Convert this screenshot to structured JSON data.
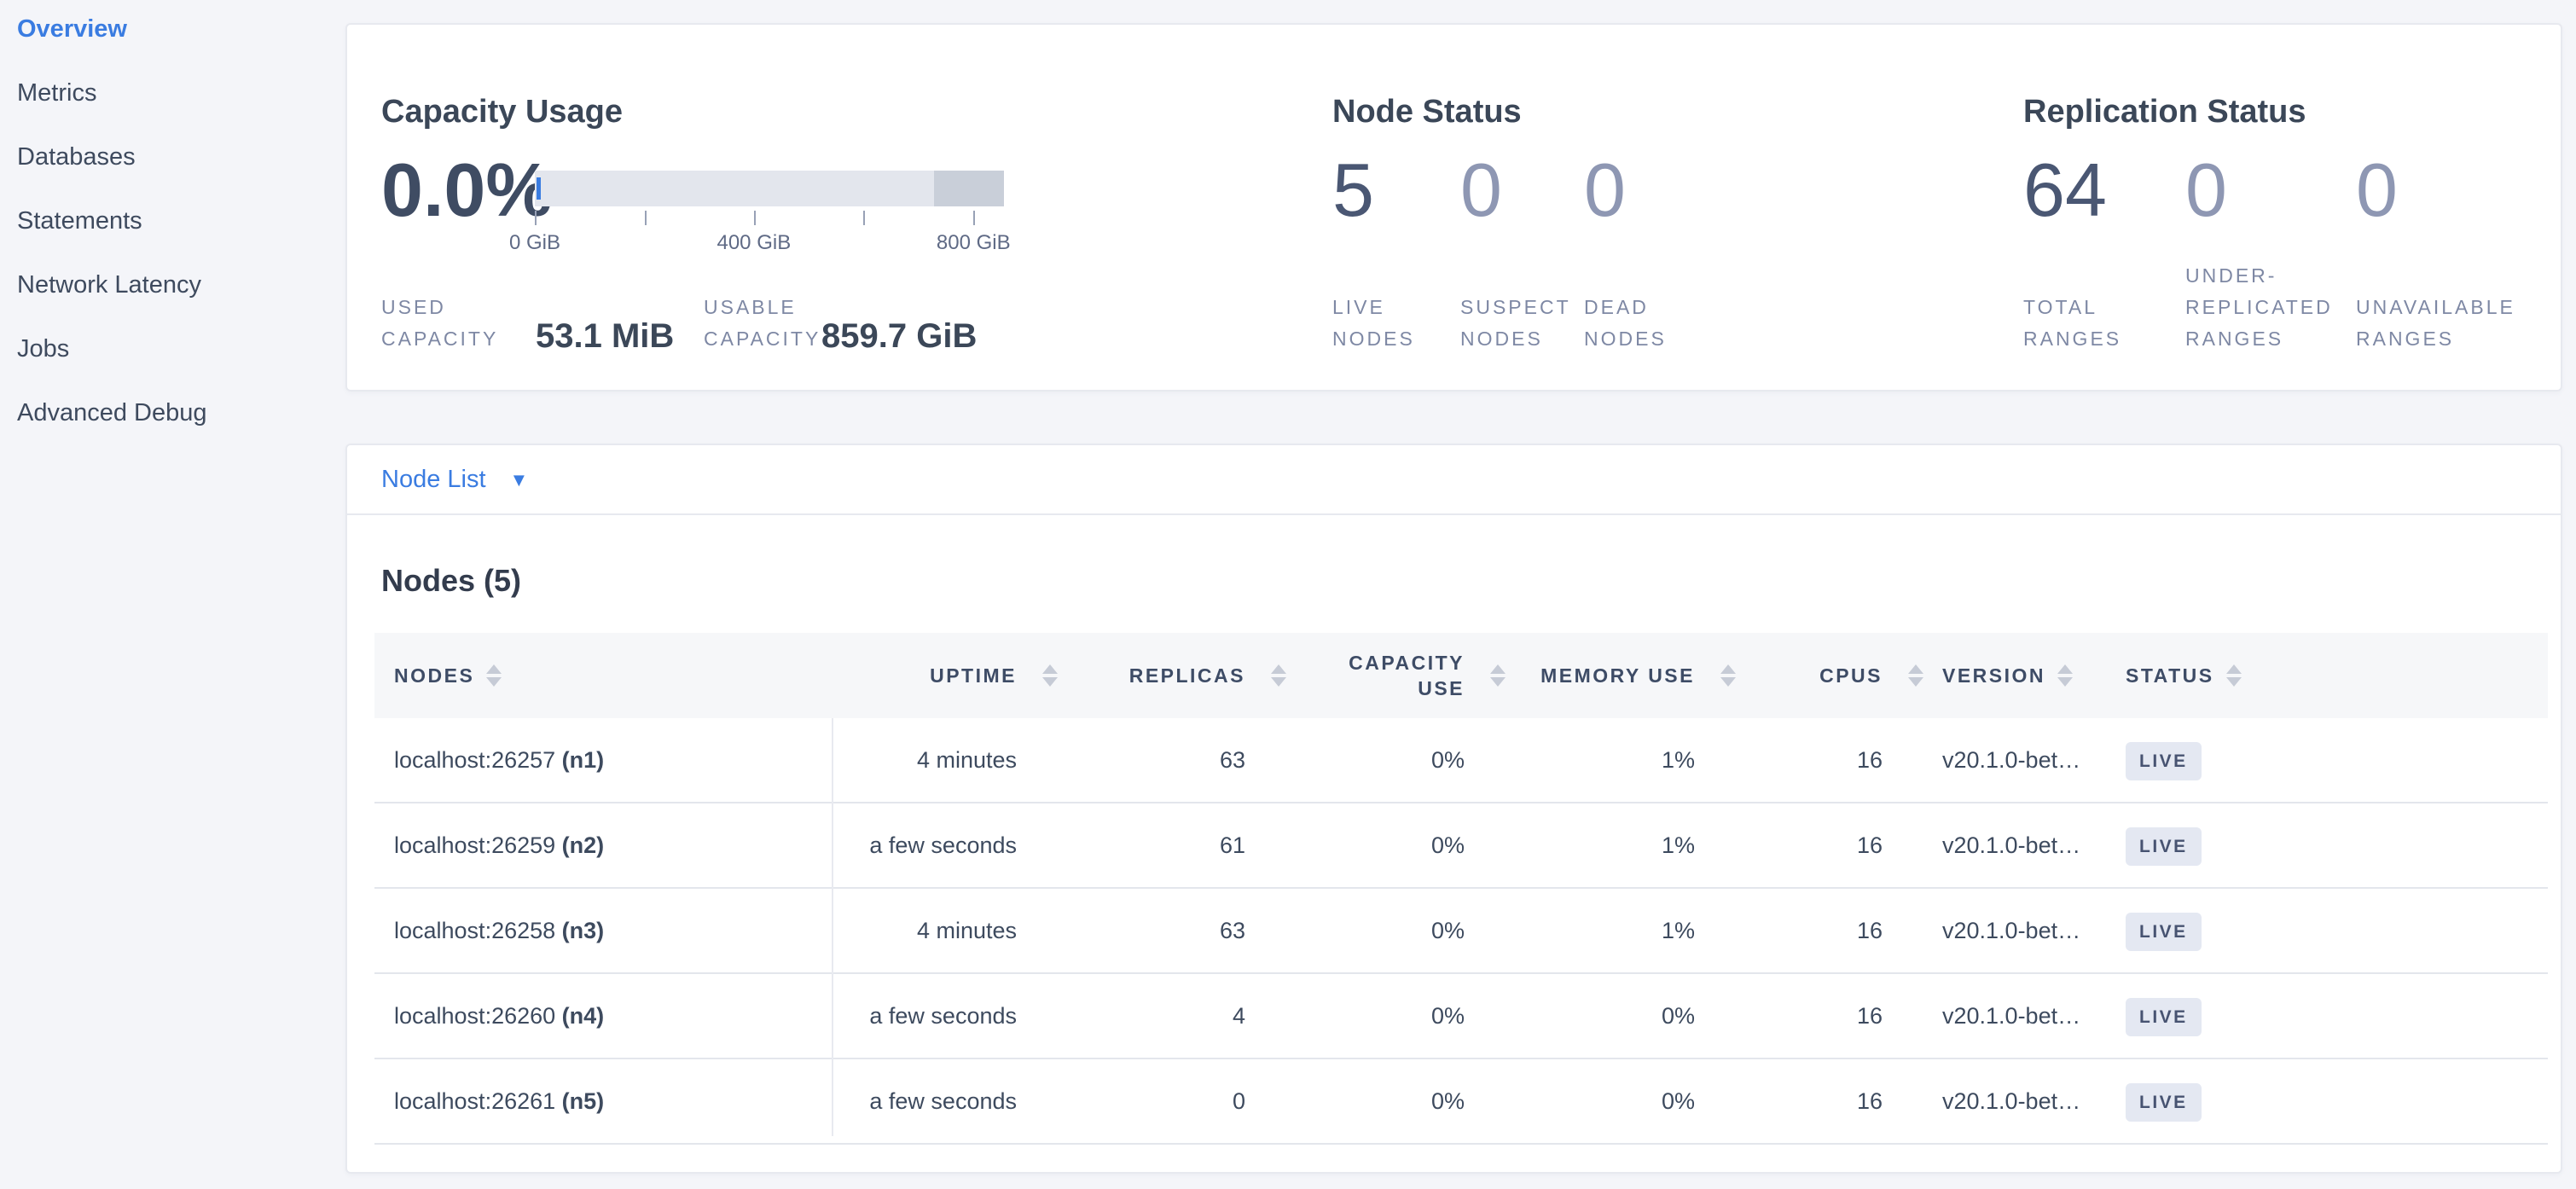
{
  "sidebar": {
    "items": [
      {
        "label": "Overview",
        "active": true
      },
      {
        "label": "Metrics",
        "active": false
      },
      {
        "label": "Databases",
        "active": false
      },
      {
        "label": "Statements",
        "active": false
      },
      {
        "label": "Network Latency",
        "active": false
      },
      {
        "label": "Jobs",
        "active": false
      },
      {
        "label": "Advanced Debug",
        "active": false
      }
    ]
  },
  "summary": {
    "capacity": {
      "title": "Capacity Usage",
      "used_percent": "0.0%",
      "bar": {
        "ticks": [
          {
            "label": "0 GiB",
            "pos": 0
          },
          {
            "label": "",
            "pos": 23.4
          },
          {
            "label": "400 GiB",
            "pos": 46.7
          },
          {
            "label": "",
            "pos": 70
          },
          {
            "label": "800 GiB",
            "pos": 93.5
          }
        ]
      },
      "used": {
        "label_lines": [
          "USED",
          "CAPACITY"
        ],
        "value": "53.1 MiB"
      },
      "usable": {
        "label_lines": [
          "USABLE",
          "CAPACITY"
        ],
        "value": "859.7 GiB"
      }
    },
    "node_status": {
      "title": "Node Status",
      "stats": [
        {
          "value": "5",
          "label_lines": [
            "LIVE",
            "NODES"
          ],
          "dim": false
        },
        {
          "value": "0",
          "label_lines": [
            "SUSPECT",
            "NODES"
          ],
          "dim": true
        },
        {
          "value": "0",
          "label_lines": [
            "DEAD",
            "NODES"
          ],
          "dim": true
        }
      ]
    },
    "replication_status": {
      "title": "Replication Status",
      "stats": [
        {
          "value": "64",
          "label_lines": [
            "TOTAL",
            "RANGES"
          ],
          "dim": false
        },
        {
          "value": "0",
          "label_lines": [
            "UNDER-",
            "REPLICATED",
            "RANGES"
          ],
          "dim": true
        },
        {
          "value": "0",
          "label_lines": [
            "UNAVAILABLE",
            "RANGES"
          ],
          "dim": true
        }
      ]
    }
  },
  "node_list": {
    "dropdown_label": "Node List",
    "heading": "Nodes (5)",
    "columns": [
      {
        "label": "NODES"
      },
      {
        "label": "UPTIME"
      },
      {
        "label": "REPLICAS"
      },
      {
        "label": "CAPACITY USE",
        "lines": [
          "CAPACITY",
          "USE"
        ]
      },
      {
        "label": "MEMORY USE"
      },
      {
        "label": "CPUS"
      },
      {
        "label": "VERSION"
      },
      {
        "label": "STATUS"
      }
    ],
    "rows": [
      {
        "address": "localhost:26257",
        "id": "(n1)",
        "uptime": "4 minutes",
        "replicas": "63",
        "capacity_use": "0%",
        "memory_use": "1%",
        "cpus": "16",
        "version": "v20.1.0-bet…",
        "status": "LIVE"
      },
      {
        "address": "localhost:26259",
        "id": "(n2)",
        "uptime": "a few seconds",
        "replicas": "61",
        "capacity_use": "0%",
        "memory_use": "1%",
        "cpus": "16",
        "version": "v20.1.0-bet…",
        "status": "LIVE"
      },
      {
        "address": "localhost:26258",
        "id": "(n3)",
        "uptime": "4 minutes",
        "replicas": "63",
        "capacity_use": "0%",
        "memory_use": "1%",
        "cpus": "16",
        "version": "v20.1.0-bet…",
        "status": "LIVE"
      },
      {
        "address": "localhost:26260",
        "id": "(n4)",
        "uptime": "a few seconds",
        "replicas": "4",
        "capacity_use": "0%",
        "memory_use": "0%",
        "cpus": "16",
        "version": "v20.1.0-bet…",
        "status": "LIVE"
      },
      {
        "address": "localhost:26261",
        "id": "(n5)",
        "uptime": "a few seconds",
        "replicas": "0",
        "capacity_use": "0%",
        "memory_use": "0%",
        "cpus": "16",
        "version": "v20.1.0-bet…",
        "status": "LIVE"
      }
    ]
  },
  "colors": {
    "accent_blue": "#3a7ce1",
    "dark_text": "#3b4758",
    "muted_label": "#7e88a4",
    "badge_bg": "#e4e8f2",
    "bar_light": "#e3e6ed",
    "bar_dark": "#c9cfd9"
  }
}
